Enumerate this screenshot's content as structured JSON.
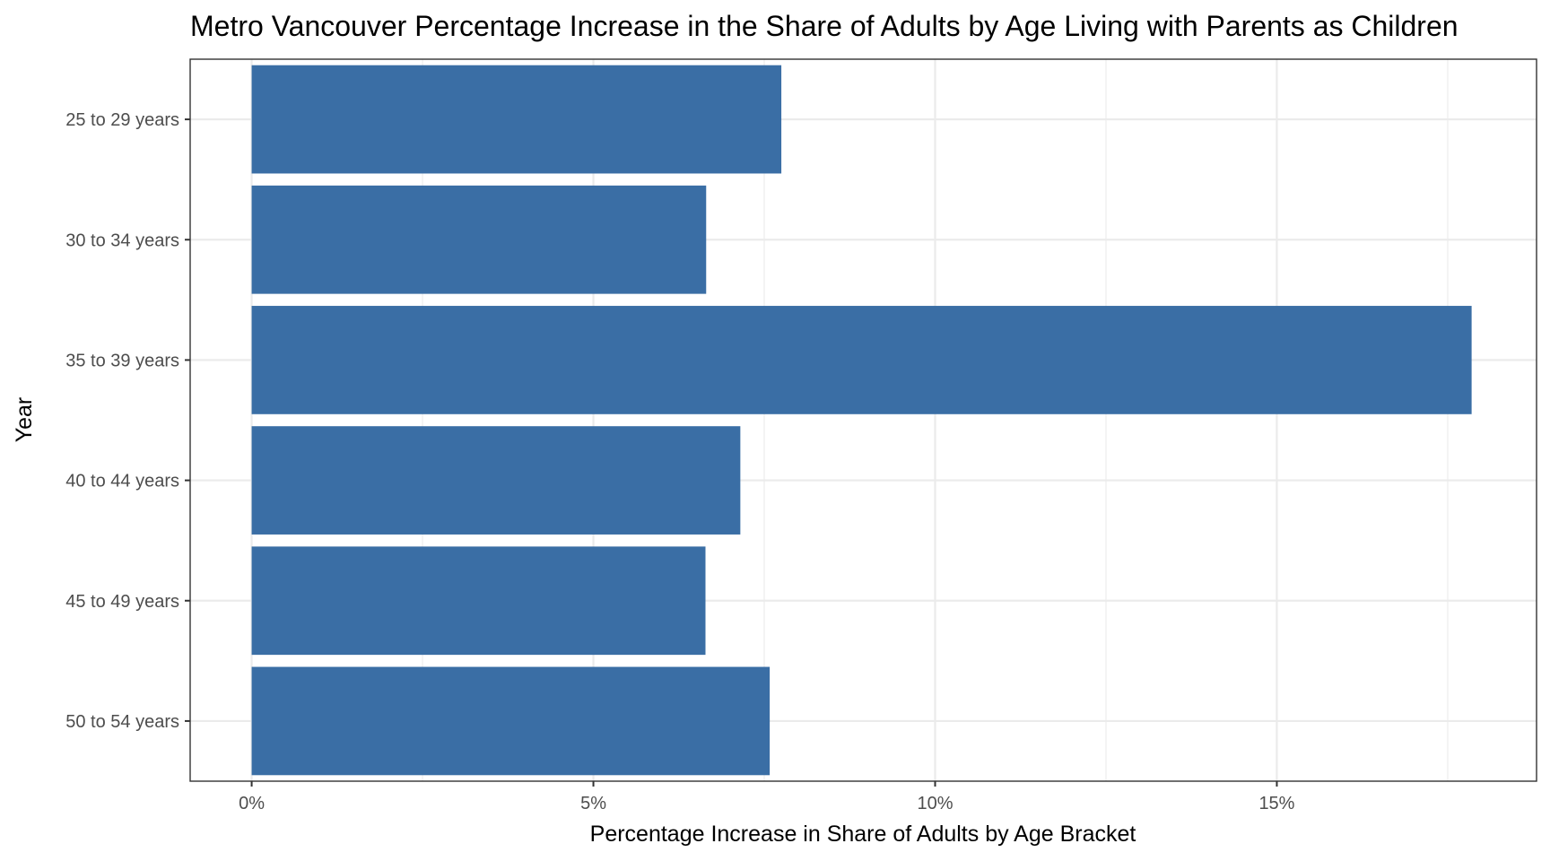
{
  "chart_data": {
    "type": "bar",
    "orientation": "horizontal",
    "title": "Metro Vancouver Percentage Increase in the Share of Adults by Age Living with Parents as Children",
    "xlabel": "Percentage Increase in Share of Adults by Age Bracket",
    "ylabel": "Year",
    "categories": [
      "25 to 29 years",
      "30 to 34 years",
      "35 to 39 years",
      "40 to 44 years",
      "45 to 49 years",
      "50 to 54 years"
    ],
    "values": [
      7.75,
      6.65,
      17.85,
      7.15,
      6.64,
      7.58
    ],
    "xlim": [
      -0.9,
      18.8
    ],
    "xticks": [
      0,
      5,
      10,
      15
    ],
    "xtick_labels": [
      "0%",
      "5%",
      "10%",
      "15%"
    ],
    "grid": true,
    "colors": {
      "bar": "#3a6ea5",
      "grid": "#ebebeb",
      "panel_border": "#333333"
    }
  }
}
